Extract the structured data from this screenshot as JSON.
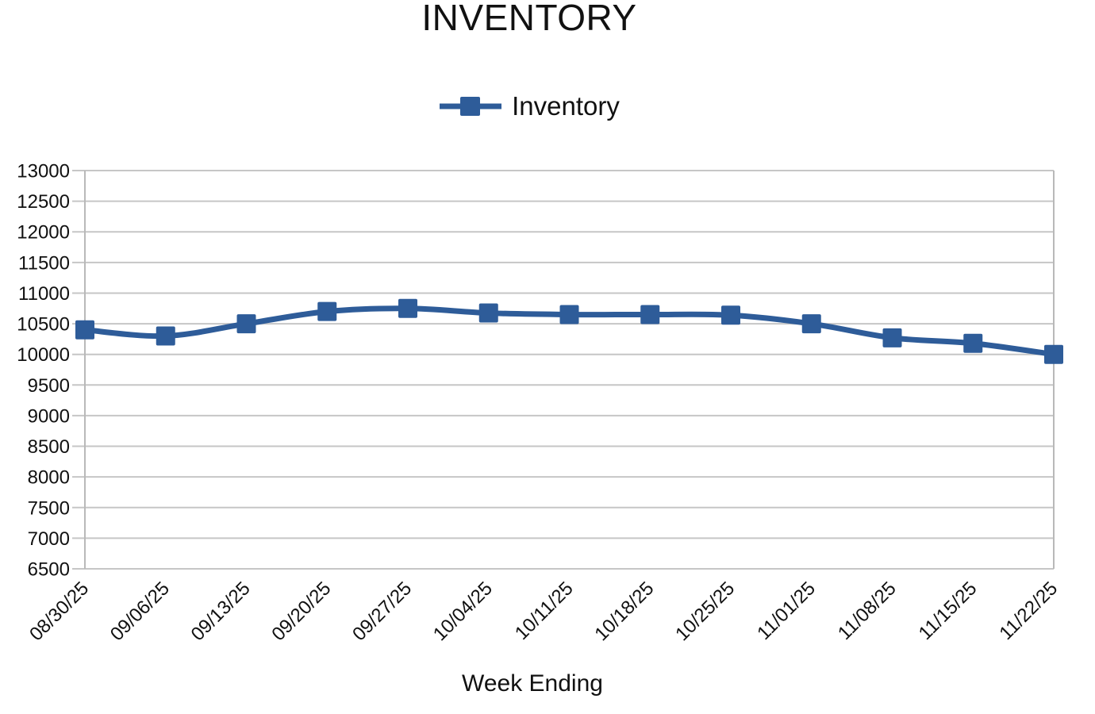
{
  "page": {
    "background": "#ffffff"
  },
  "chart_data": {
    "type": "line",
    "title": "INVENTORY",
    "xlabel": "Week Ending",
    "ylabel": "",
    "legend": {
      "position": "top",
      "entries": [
        "Inventory"
      ]
    },
    "categories": [
      "08/30/25",
      "09/06/25",
      "09/13/25",
      "09/20/25",
      "09/27/25",
      "10/04/25",
      "10/11/25",
      "10/18/25",
      "10/25/25",
      "11/01/25",
      "11/08/25",
      "11/15/25",
      "11/22/25"
    ],
    "series": [
      {
        "name": "Inventory",
        "color": "#2E5C99",
        "marker": "square",
        "smooth": true,
        "values": [
          10400,
          10300,
          10500,
          10700,
          10750,
          10675,
          10650,
          10650,
          10640,
          10500,
          10270,
          10180,
          10000
        ]
      }
    ],
    "ylim": [
      6500,
      13000
    ],
    "ytick_step": 500,
    "grid": "horizontal",
    "grid_color": "#c6c6c6",
    "axis_color": "#b9b9b9",
    "text_color": "#111111"
  }
}
